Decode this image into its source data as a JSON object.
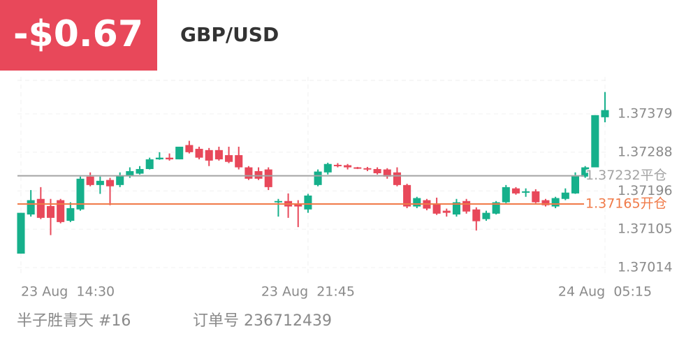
{
  "header": {
    "pnl": "-$0.67",
    "symbol": "GBP/USD"
  },
  "chart_data": {
    "type": "candlestick",
    "categories": [
      "23 Aug  14:30",
      null,
      null,
      null,
      null,
      null,
      null,
      null,
      null,
      null,
      null,
      null,
      null,
      null,
      null,
      null,
      null,
      null,
      null,
      null,
      null,
      null,
      null,
      null,
      null,
      null,
      null,
      null,
      null,
      "23 Aug  21:45",
      null,
      null,
      null,
      null,
      null,
      null,
      null,
      null,
      null,
      null,
      null,
      null,
      null,
      null,
      null,
      null,
      null,
      null,
      null,
      null,
      null,
      null,
      null,
      null,
      null,
      null,
      null,
      null,
      null,
      "24 Aug  05:15"
    ],
    "open": [
      1.37047,
      1.3714,
      1.37177,
      1.3716,
      1.37174,
      1.37125,
      1.37152,
      1.3723,
      1.3721,
      1.37222,
      1.3721,
      1.37232,
      1.37237,
      1.37248,
      1.37271,
      1.37275,
      1.37271,
      1.37305,
      1.37296,
      1.37293,
      1.37293,
      1.37281,
      1.37281,
      1.37252,
      1.37243,
      1.37247,
      1.37169,
      1.37172,
      1.37165,
      1.37152,
      1.3721,
      1.3724,
      1.37258,
      1.37257,
      1.37252,
      1.3725,
      1.37248,
      1.37247,
      1.3724,
      1.3721,
      1.37159,
      1.37174,
      1.37165,
      1.37149,
      1.3714,
      1.37172,
      1.37152,
      1.37129,
      1.37142,
      1.37169,
      1.37202,
      1.37192,
      1.37195,
      1.37174,
      1.37159,
      1.37177,
      1.3719,
      1.3723,
      1.37252,
      1.37371
    ],
    "high": [
      1.37144,
      1.37198,
      1.37205,
      1.37177,
      1.37177,
      1.37169,
      1.3723,
      1.3724,
      1.3723,
      1.37227,
      1.3724,
      1.37252,
      1.37255,
      1.37275,
      1.37288,
      1.37285,
      1.37301,
      1.37315,
      1.37301,
      1.37298,
      1.37301,
      1.37301,
      1.37301,
      1.37255,
      1.37252,
      1.37252,
      1.37177,
      1.3719,
      1.37174,
      1.37189,
      1.37247,
      1.37263,
      1.37262,
      1.3726,
      1.37253,
      1.37253,
      1.37252,
      1.3725,
      1.37252,
      1.37213,
      1.37182,
      1.37177,
      1.3718,
      1.37154,
      1.37177,
      1.37177,
      1.37157,
      1.37149,
      1.37172,
      1.3721,
      1.37205,
      1.37202,
      1.372,
      1.37177,
      1.37182,
      1.37202,
      1.3724,
      1.37255,
      1.37376,
      1.37431
    ],
    "low": [
      1.37047,
      1.37135,
      1.37129,
      1.37091,
      1.37119,
      1.37122,
      1.37149,
      1.37207,
      1.37189,
      1.37162,
      1.37205,
      1.37227,
      1.37235,
      1.37247,
      1.3727,
      1.37268,
      1.37271,
      1.37285,
      1.37271,
      1.37255,
      1.37268,
      1.37262,
      1.37247,
      1.37222,
      1.37222,
      1.37198,
      1.37135,
      1.37132,
      1.3711,
      1.37144,
      1.37207,
      1.37235,
      1.37252,
      1.37247,
      1.37248,
      1.37243,
      1.37235,
      1.37225,
      1.37207,
      1.37155,
      1.37155,
      1.3715,
      1.37139,
      1.37135,
      1.37135,
      1.37142,
      1.37102,
      1.37125,
      1.3714,
      1.37167,
      1.37187,
      1.37182,
      1.37167,
      1.37159,
      1.37155,
      1.37174,
      1.37189,
      1.37227,
      1.37252,
      1.37359
    ],
    "close": [
      1.37144,
      1.37174,
      1.37132,
      1.37132,
      1.37122,
      1.37155,
      1.37225,
      1.3721,
      1.3722,
      1.37207,
      1.37233,
      1.37243,
      1.37248,
      1.37271,
      1.37275,
      1.37271,
      1.37301,
      1.37288,
      1.37275,
      1.37268,
      1.37271,
      1.37265,
      1.37252,
      1.37225,
      1.37225,
      1.37205,
      1.37172,
      1.37159,
      1.37159,
      1.37185,
      1.37242,
      1.3726,
      1.37255,
      1.37252,
      1.3725,
      1.37247,
      1.37238,
      1.3723,
      1.3721,
      1.37159,
      1.37179,
      1.37154,
      1.37142,
      1.37144,
      1.37169,
      1.37147,
      1.37124,
      1.37144,
      1.37169,
      1.37205,
      1.3719,
      1.37195,
      1.37169,
      1.37162,
      1.37179,
      1.37192,
      1.37233,
      1.37252,
      1.37376,
      1.37388
    ],
    "up_color": "#16b08b",
    "down_color": "#e8485a",
    "ylim": [
      1.36994,
      1.37467
    ],
    "yticks": [
      1.37014,
      1.37105,
      1.37196,
      1.37288,
      1.37379
    ],
    "grid": true,
    "reference_lines": [
      {
        "value": 1.37232,
        "label": "1.37232平仓",
        "color": "#a3a3a3"
      },
      {
        "value": 1.37165,
        "label": "1.37165开仓",
        "color": "#f07a48"
      }
    ]
  },
  "footer": {
    "account": "半子胜青天 #16",
    "order": "订单号 236712439"
  }
}
